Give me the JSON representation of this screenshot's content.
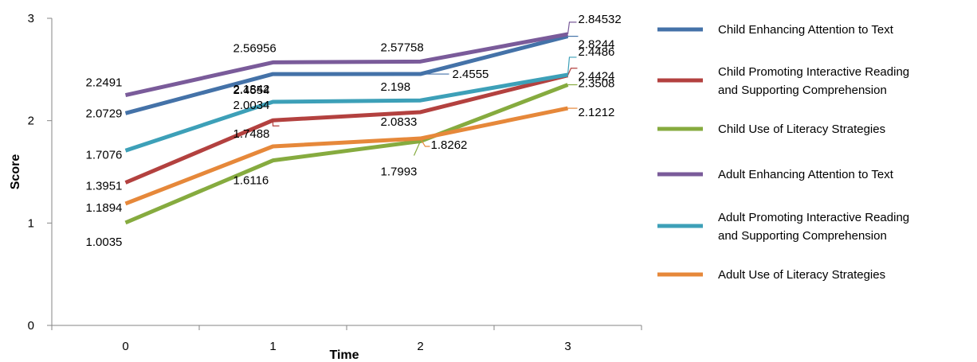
{
  "chart_data": {
    "type": "line",
    "title": "",
    "xlabel": "Time",
    "ylabel": "Score",
    "x": [
      0,
      1,
      2,
      3
    ],
    "ylim": [
      0,
      3
    ],
    "y_ticks": [
      "0",
      "1",
      "2",
      "3"
    ],
    "x_ticks": [
      "0",
      "1",
      "2",
      "3"
    ],
    "grid": false,
    "legend_position": "right",
    "series": [
      {
        "name": "Child Enhancing Attention to Text",
        "color": "#4472a8",
        "values": [
          2.0729,
          2.4554,
          2.4555,
          2.8244
        ],
        "labels": [
          "2.0729",
          "2.4554",
          "2.4555",
          "2.8244"
        ]
      },
      {
        "name": "Child Promoting Interactive Reading and Supporting Comprehension",
        "color": "#b3413f",
        "values": [
          1.3951,
          2.0034,
          2.0833,
          2.4424
        ],
        "labels": [
          "1.3951",
          "2.0034",
          "2.0833",
          "2.4424"
        ]
      },
      {
        "name": "Child Use of Literacy Strategies",
        "color": "#86ab3f",
        "values": [
          1.0035,
          1.6116,
          1.7993,
          2.3508
        ],
        "labels": [
          "1.0035",
          "1.6116",
          "1.7993",
          "2.3508"
        ]
      },
      {
        "name": "Adult Enhancing Attention to Text",
        "color": "#7a5b9a",
        "values": [
          2.2491,
          2.56956,
          2.57758,
          2.84532
        ],
        "labels": [
          "2.2491",
          "2.56956",
          "2.57758",
          "2.84532"
        ]
      },
      {
        "name": "Adult Promoting Interactive Reading and Supporting Comprehension",
        "color": "#3da0b8",
        "values": [
          1.7076,
          2.1842,
          2.198,
          2.4486
        ],
        "labels": [
          "1.7076",
          "2.1842",
          "2.198",
          "2.4486"
        ]
      },
      {
        "name": "Adult Use of Literacy Strategies",
        "color": "#e6883a",
        "values": [
          1.1894,
          1.7488,
          1.8262,
          2.1212
        ],
        "labels": [
          "1.1894",
          "1.7488",
          "1.8262",
          "2.1212"
        ]
      }
    ],
    "legend_lines": [
      [
        "Child Enhancing Attention to Text"
      ],
      [
        "Child Promoting Interactive Reading",
        "and Supporting Comprehension"
      ],
      [
        "Child Use of Literacy Strategies"
      ],
      [
        "Adult Enhancing Attention to Text"
      ],
      [
        "Adult Promoting Interactive Reading",
        "and Supporting Comprehension"
      ],
      [
        "Adult Use of Literacy Strategies"
      ]
    ]
  }
}
